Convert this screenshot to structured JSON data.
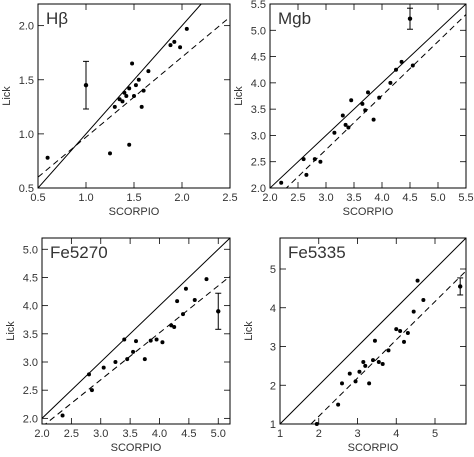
{
  "chart_data": [
    {
      "type": "scatter",
      "title": "Hβ",
      "xlabel": "SCORPIO",
      "ylabel": "Lick",
      "xlim": [
        0.5,
        2.5
      ],
      "ylim": [
        0.5,
        2.2
      ],
      "xticks": [
        "0.5",
        "1.0",
        "1.5",
        "2.0",
        "2.5"
      ],
      "yticks": [
        "0.5",
        "1.0",
        "1.5",
        "2.0"
      ],
      "xtick_values": [
        0.5,
        1.0,
        1.5,
        2.0,
        2.5
      ],
      "ytick_values": [
        0.5,
        1.0,
        1.5,
        2.0
      ],
      "grid": false,
      "one_to_one_line": true,
      "fit_line": [
        [
          0.5,
          0.6
        ],
        [
          2.5,
          2.08
        ]
      ],
      "error_bar": {
        "x": 1.0,
        "y": 1.45,
        "yerr": 0.22
      },
      "points": [
        [
          0.6,
          0.78
        ],
        [
          1.25,
          0.82
        ],
        [
          1.3,
          1.25
        ],
        [
          1.35,
          1.32
        ],
        [
          1.38,
          1.3
        ],
        [
          1.4,
          1.38
        ],
        [
          1.42,
          1.35
        ],
        [
          1.45,
          1.42
        ],
        [
          1.48,
          1.65
        ],
        [
          1.5,
          1.35
        ],
        [
          1.52,
          1.45
        ],
        [
          1.45,
          0.9
        ],
        [
          1.55,
          1.5
        ],
        [
          1.58,
          1.25
        ],
        [
          1.6,
          1.4
        ],
        [
          1.65,
          1.58
        ],
        [
          1.88,
          1.82
        ],
        [
          1.92,
          1.85
        ],
        [
          1.98,
          1.8
        ],
        [
          2.05,
          1.97
        ]
      ]
    },
    {
      "type": "scatter",
      "title": "Mgb",
      "xlabel": "SCORPIO",
      "ylabel": "Lick",
      "xlim": [
        2.0,
        5.5
      ],
      "ylim": [
        2.0,
        5.5
      ],
      "xticks": [
        "2.0",
        "2.5",
        "3.0",
        "3.5",
        "4.0",
        "4.5",
        "5.0",
        "5.5"
      ],
      "yticks": [
        "2.0",
        "2.5",
        "3.0",
        "3.5",
        "4.0",
        "4.5",
        "5.0",
        "5.5"
      ],
      "xtick_values": [
        2.0,
        2.5,
        3.0,
        3.5,
        4.0,
        4.5,
        5.0,
        5.5
      ],
      "ytick_values": [
        2.0,
        2.5,
        3.0,
        3.5,
        4.0,
        4.5,
        5.0,
        5.5
      ],
      "grid": false,
      "one_to_one_line": true,
      "fit_line": [
        [
          2.0,
          1.7
        ],
        [
          5.5,
          5.3
        ]
      ],
      "error_bar": {
        "x": 4.5,
        "y": 5.22,
        "yerr": 0.2
      },
      "points": [
        [
          2.2,
          2.1
        ],
        [
          2.6,
          2.55
        ],
        [
          2.65,
          2.25
        ],
        [
          2.8,
          2.55
        ],
        [
          2.9,
          2.5
        ],
        [
          3.15,
          3.05
        ],
        [
          3.3,
          3.38
        ],
        [
          3.35,
          3.2
        ],
        [
          3.4,
          3.15
        ],
        [
          3.45,
          3.67
        ],
        [
          3.65,
          3.6
        ],
        [
          3.7,
          3.48
        ],
        [
          3.75,
          3.82
        ],
        [
          3.85,
          3.3
        ],
        [
          3.95,
          3.72
        ],
        [
          4.15,
          4.0
        ],
        [
          4.25,
          4.25
        ],
        [
          4.35,
          4.4
        ],
        [
          4.55,
          4.33
        ]
      ]
    },
    {
      "type": "scatter",
      "title": "Fe5270",
      "xlabel": "SCORPIO",
      "ylabel": "Lick",
      "xlim": [
        2.0,
        5.2
      ],
      "ylim": [
        1.9,
        5.2
      ],
      "xticks": [
        "2.0",
        "2.5",
        "3.0",
        "3.5",
        "4.0",
        "4.5",
        "5.0"
      ],
      "yticks": [
        "2.0",
        "2.5",
        "3.0",
        "3.5",
        "4.0",
        "4.5",
        "5.0"
      ],
      "xtick_values": [
        2.0,
        2.5,
        3.0,
        3.5,
        4.0,
        4.5,
        5.0
      ],
      "ytick_values": [
        2.0,
        2.5,
        3.0,
        3.5,
        4.0,
        4.5,
        5.0
      ],
      "grid": false,
      "one_to_one_line": true,
      "fit_line": [
        [
          2.0,
          1.85
        ],
        [
          5.2,
          4.52
        ]
      ],
      "error_bar": {
        "x": 5.0,
        "y": 3.9,
        "yerr": 0.32
      },
      "points": [
        [
          2.35,
          2.05
        ],
        [
          2.8,
          2.78
        ],
        [
          2.85,
          2.5
        ],
        [
          3.05,
          2.9
        ],
        [
          3.25,
          3.0
        ],
        [
          3.4,
          3.4
        ],
        [
          3.45,
          3.05
        ],
        [
          3.55,
          3.18
        ],
        [
          3.6,
          3.37
        ],
        [
          3.75,
          3.05
        ],
        [
          3.85,
          3.38
        ],
        [
          3.95,
          3.4
        ],
        [
          4.05,
          3.35
        ],
        [
          4.2,
          3.65
        ],
        [
          4.25,
          3.62
        ],
        [
          4.3,
          4.08
        ],
        [
          4.4,
          3.85
        ],
        [
          4.45,
          4.3
        ],
        [
          4.6,
          4.1
        ],
        [
          4.8,
          4.47
        ]
      ]
    },
    {
      "type": "scatter",
      "title": "Fe5335",
      "xlabel": "SCORPIO",
      "ylabel": "Lick",
      "xlim": [
        1.0,
        5.8
      ],
      "ylim": [
        1.0,
        5.8
      ],
      "xticks": [
        "1",
        "2",
        "3",
        "4",
        "5"
      ],
      "yticks": [
        "1",
        "2",
        "3",
        "4",
        "5"
      ],
      "xtick_values": [
        1,
        2,
        3,
        4,
        5
      ],
      "ytick_values": [
        1,
        2,
        3,
        4,
        5
      ],
      "grid": false,
      "one_to_one_line": true,
      "fit_line": [
        [
          1.8,
          1.0
        ],
        [
          5.8,
          4.95
        ]
      ],
      "error_bar": {
        "x": 5.65,
        "y": 4.55,
        "yerr": 0.22
      },
      "points": [
        [
          1.95,
          1.0
        ],
        [
          2.5,
          1.5
        ],
        [
          2.6,
          2.05
        ],
        [
          2.8,
          2.3
        ],
        [
          2.95,
          2.1
        ],
        [
          3.05,
          2.35
        ],
        [
          3.15,
          2.6
        ],
        [
          3.2,
          2.5
        ],
        [
          3.3,
          2.05
        ],
        [
          3.4,
          2.65
        ],
        [
          3.45,
          3.15
        ],
        [
          3.55,
          2.6
        ],
        [
          3.65,
          2.55
        ],
        [
          3.8,
          2.9
        ],
        [
          4.0,
          3.45
        ],
        [
          4.1,
          3.4
        ],
        [
          4.2,
          3.12
        ],
        [
          4.3,
          3.35
        ],
        [
          4.45,
          3.9
        ],
        [
          4.55,
          4.7
        ],
        [
          4.7,
          4.2
        ]
      ]
    }
  ]
}
